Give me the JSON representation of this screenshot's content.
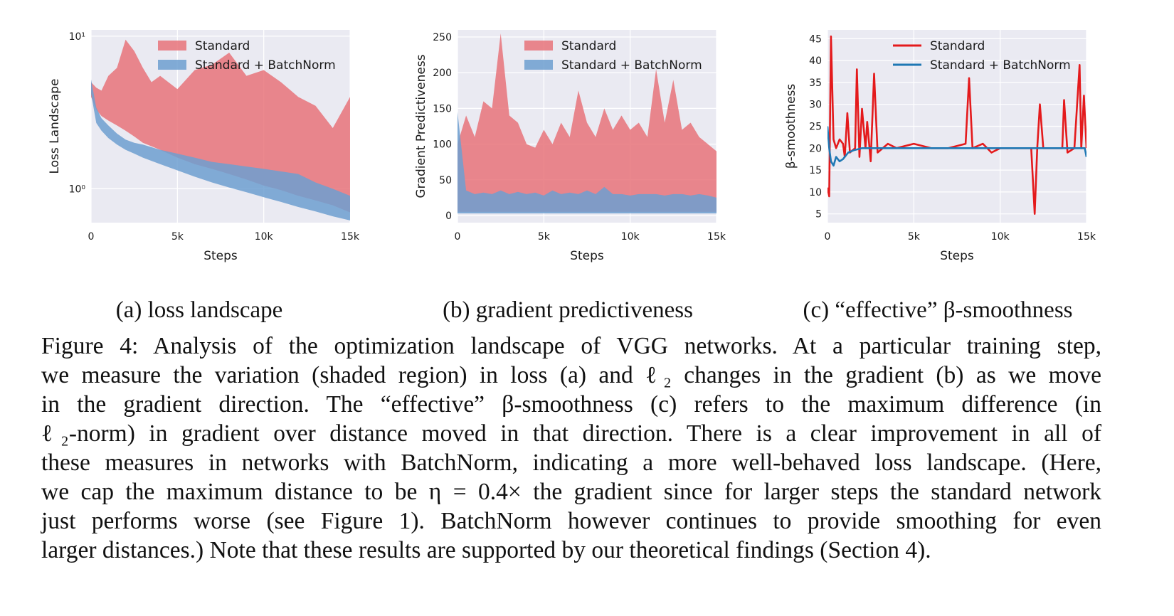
{
  "figure": {
    "caption_lines": [
      "Figure 4: Analysis of the optimization landscape of VGG networks. At a particular training step,",
      "we measure the variation (shaded region) in loss (a) and ℓ₂ changes in the gradient (b) as we move",
      "in the gradient direction. The “effective” β-smoothness (c) refers to the maximum difference (in",
      "ℓ₂-norm) in gradient over distance moved in that direction. There is a clear improvement in all of",
      "these measures in networks with BatchNorm, indicating a more well-behaved loss landscape. (Here,",
      "we cap the maximum distance to be η = 0.4× the gradient since for larger steps the standard network",
      "just performs worse (see Figure 1). BatchNorm however continues to provide smoothing for even",
      "larger distances.) Note that these results are supported by our theoretical findings (Section 4)."
    ],
    "subcaptions": {
      "a": "(a) loss landscape",
      "b": "(b) gradient predictiveness",
      "c": "(c) “effective” β-smoothness"
    }
  },
  "colors": {
    "standard_fill": "#e8737a",
    "batchnorm_fill": "#6d9fd0",
    "standard_line": "#e41a1c",
    "batchnorm_line": "#1f78b4",
    "plot_bg": "#eaeaf2",
    "grid": "#ffffff"
  },
  "chart_data": [
    {
      "id": "a",
      "type": "area",
      "title": "",
      "xlabel": "Steps",
      "ylabel": "Loss Landscape",
      "yscale": "log",
      "xlim": [
        0,
        15000
      ],
      "ylim": [
        0.6,
        11
      ],
      "xticks": [
        0,
        5000,
        10000,
        15000
      ],
      "xtick_labels": [
        "0",
        "5k",
        "10k",
        "15k"
      ],
      "yticks": [
        1,
        10
      ],
      "ytick_labels": [
        "10⁰",
        "10¹"
      ],
      "legend": [
        "Standard",
        "Standard + BatchNorm"
      ],
      "legend_position": "top-center",
      "series": [
        {
          "name": "Standard",
          "x": [
            0,
            300,
            600,
            1000,
            1500,
            2000,
            2500,
            3000,
            3500,
            4000,
            5000,
            6000,
            7000,
            8000,
            9000,
            10000,
            11000,
            12000,
            13000,
            14000,
            15000
          ],
          "lower": [
            4.0,
            3.3,
            3.0,
            2.8,
            2.6,
            2.4,
            2.2,
            2.0,
            1.9,
            1.8,
            1.6,
            1.45,
            1.35,
            1.25,
            1.15,
            1.05,
            0.98,
            0.9,
            0.84,
            0.78,
            0.7
          ],
          "upper": [
            5.0,
            4.6,
            4.4,
            5.5,
            6.2,
            9.5,
            8.0,
            6.2,
            5.0,
            5.5,
            4.5,
            6.0,
            6.5,
            7.8,
            5.5,
            6.0,
            5.0,
            4.0,
            3.5,
            2.5,
            4.0
          ]
        },
        {
          "name": "Standard + BatchNorm",
          "x": [
            0,
            300,
            600,
            1000,
            1500,
            2000,
            2500,
            3000,
            4000,
            5000,
            6000,
            7000,
            8000,
            9000,
            10000,
            11000,
            12000,
            13000,
            14000,
            15000
          ],
          "lower": [
            4.2,
            2.7,
            2.4,
            2.15,
            1.95,
            1.8,
            1.7,
            1.6,
            1.45,
            1.32,
            1.2,
            1.1,
            1.02,
            0.95,
            0.88,
            0.82,
            0.76,
            0.71,
            0.66,
            0.62
          ],
          "upper": [
            5.2,
            3.4,
            2.9,
            2.6,
            2.3,
            2.1,
            2.0,
            1.95,
            1.8,
            1.7,
            1.6,
            1.5,
            1.45,
            1.4,
            1.35,
            1.3,
            1.25,
            1.1,
            1.0,
            0.9
          ]
        }
      ]
    },
    {
      "id": "b",
      "type": "area",
      "title": "",
      "xlabel": "Steps",
      "ylabel": "Gradient Predictiveness",
      "xlim": [
        0,
        15000
      ],
      "ylim": [
        -10,
        260
      ],
      "xticks": [
        0,
        5000,
        10000,
        15000
      ],
      "xtick_labels": [
        "0",
        "5k",
        "10k",
        "15k"
      ],
      "yticks": [
        0,
        50,
        100,
        150,
        200,
        250
      ],
      "ytick_labels": [
        "0",
        "50",
        "100",
        "150",
        "200",
        "250"
      ],
      "legend": [
        "Standard",
        "Standard + BatchNorm"
      ],
      "legend_position": "top-center",
      "series": [
        {
          "name": "Standard",
          "x": [
            0,
            500,
            1000,
            1500,
            2000,
            2500,
            3000,
            3500,
            4000,
            4500,
            5000,
            5500,
            6000,
            6500,
            7000,
            7500,
            8000,
            8500,
            9000,
            9500,
            10000,
            10500,
            11000,
            11500,
            12000,
            12500,
            13000,
            13500,
            14000,
            14500,
            15000
          ],
          "lower": [
            5,
            5,
            5,
            5,
            5,
            5,
            5,
            5,
            5,
            5,
            5,
            5,
            5,
            5,
            5,
            5,
            5,
            5,
            5,
            5,
            5,
            5,
            5,
            5,
            5,
            5,
            5,
            5,
            5,
            5,
            5
          ],
          "upper": [
            100,
            140,
            110,
            160,
            150,
            255,
            140,
            130,
            100,
            95,
            120,
            100,
            130,
            110,
            175,
            130,
            110,
            150,
            120,
            140,
            120,
            130,
            110,
            205,
            130,
            190,
            120,
            130,
            110,
            100,
            90
          ]
        },
        {
          "name": "Standard + BatchNorm",
          "x": [
            0,
            500,
            1000,
            1500,
            2000,
            2500,
            3000,
            3500,
            4000,
            4500,
            5000,
            5500,
            6000,
            6500,
            7000,
            7500,
            8000,
            8500,
            9000,
            9500,
            10000,
            10500,
            11000,
            11500,
            12000,
            12500,
            13000,
            13500,
            14000,
            14500,
            15000
          ],
          "lower": [
            3,
            3,
            3,
            3,
            3,
            3,
            3,
            3,
            3,
            3,
            3,
            3,
            3,
            3,
            3,
            3,
            3,
            3,
            3,
            3,
            3,
            3,
            3,
            3,
            3,
            3,
            3,
            3,
            3,
            3,
            3
          ],
          "upper": [
            145,
            35,
            30,
            32,
            30,
            35,
            30,
            33,
            30,
            32,
            28,
            35,
            30,
            32,
            30,
            35,
            30,
            40,
            30,
            30,
            28,
            30,
            30,
            30,
            28,
            30,
            30,
            28,
            30,
            28,
            25
          ]
        }
      ]
    },
    {
      "id": "c",
      "type": "line",
      "title": "",
      "xlabel": "Steps",
      "ylabel": "β-smoothness",
      "xlim": [
        0,
        15000
      ],
      "ylim": [
        3,
        47
      ],
      "xticks": [
        0,
        5000,
        10000,
        15000
      ],
      "xtick_labels": [
        "0",
        "5k",
        "10k",
        "15k"
      ],
      "yticks": [
        5,
        10,
        15,
        20,
        25,
        30,
        35,
        40,
        45
      ],
      "ytick_labels": [
        "5",
        "10",
        "15",
        "20",
        "25",
        "30",
        "35",
        "40",
        "45"
      ],
      "legend": [
        "Standard",
        "Standard + BatchNorm"
      ],
      "legend_position": "top-right",
      "series": [
        {
          "name": "Standard",
          "x": [
            0,
            100,
            200,
            350,
            500,
            700,
            900,
            1000,
            1150,
            1300,
            1600,
            1700,
            1850,
            2000,
            2200,
            2300,
            2500,
            2700,
            2900,
            3200,
            3500,
            4000,
            5000,
            6000,
            7000,
            8000,
            8200,
            8400,
            9000,
            9500,
            10000,
            11000,
            11800,
            12000,
            12150,
            12300,
            12500,
            13000,
            13600,
            13700,
            13900,
            14300,
            14600,
            14700,
            14850,
            15000
          ],
          "y": [
            11,
            9,
            45.5,
            22,
            20,
            22,
            21,
            18,
            28,
            19,
            20,
            38,
            18,
            29,
            20,
            26,
            17,
            37,
            19,
            20,
            21,
            20,
            21,
            20,
            20,
            21,
            36,
            20,
            21,
            19,
            20,
            20,
            20,
            5,
            20,
            30,
            20,
            20,
            20,
            31,
            19,
            20,
            39,
            20,
            32,
            20
          ]
        },
        {
          "name": "Standard + BatchNorm",
          "x": [
            0,
            100,
            200,
            350,
            500,
            700,
            900,
            1200,
            1500,
            2000,
            3000,
            4000,
            5000,
            6000,
            7000,
            8000,
            9000,
            10000,
            11000,
            12000,
            13000,
            14000,
            14900,
            15000
          ],
          "y": [
            25,
            20,
            17,
            16,
            18,
            17,
            17.5,
            19,
            19.5,
            20,
            20,
            20,
            20,
            20,
            20,
            20,
            20,
            20,
            20,
            20,
            20,
            20,
            20,
            18
          ]
        }
      ]
    }
  ]
}
